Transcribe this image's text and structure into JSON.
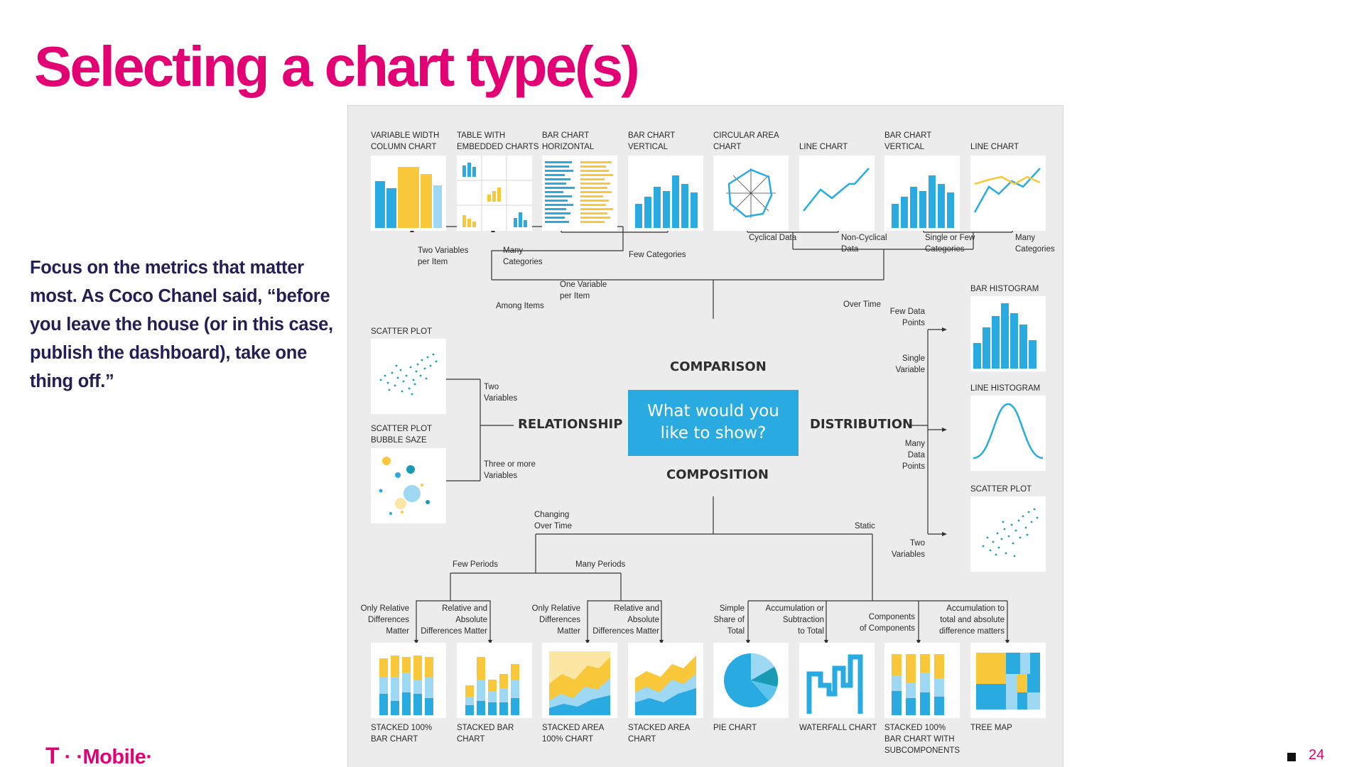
{
  "slide": {
    "title": "Selecting a chart type(s)",
    "quote": "Focus on the metrics that matter most. As Coco Chanel said, “before you leave the house (or in this case, publish the dashboard), take one thing off.”",
    "logo": {
      "mark": "T",
      "dots": "· ·",
      "wordmark": "Mobile",
      "trail": "·"
    },
    "page_number": "24"
  },
  "colors": {
    "brand": "#e20074",
    "chart_blue": "#29abe2",
    "chart_yellow": "#f9c73a",
    "chart_light_blue": "#9ed8f2",
    "chart_pale_yellow": "#fbe6a4"
  },
  "diagram": {
    "center": {
      "line1": "What would you",
      "line2": "like to show?"
    },
    "categories": {
      "comparison": "COMPARISON",
      "relationship": "RELATIONSHIP",
      "distribution": "DISTRIBUTION",
      "composition": "COMPOSITION"
    },
    "top_charts": [
      {
        "label": "VARIABLE WIDTH\nCOLUMN CHART",
        "icon": "variable-width-column-chart-icon"
      },
      {
        "label": "TABLE WITH\nEMBEDDED CHARTS",
        "icon": "table-embedded-charts-icon"
      },
      {
        "label": "BAR CHART\nHORIZONTAL",
        "icon": "horizontal-bar-chart-icon"
      },
      {
        "label": "BAR CHART\nVERTICAL",
        "icon": "vertical-bar-chart-icon"
      },
      {
        "label": "CIRCULAR AREA\nCHART",
        "icon": "circular-area-chart-icon"
      },
      {
        "label": "LINE CHART",
        "icon": "line-chart-icon"
      },
      {
        "label": "BAR CHART\nVERTICAL",
        "icon": "vertical-bar-chart-icon"
      },
      {
        "label": "LINE CHART",
        "icon": "multi-line-chart-icon"
      }
    ],
    "top_notes": {
      "two_variables": "Two Variables\nper Item",
      "many_categories_1": "Many\nCategories",
      "few_categories": "Few Categories",
      "one_variable": "One Variable\nper Item",
      "among_items": "Among Items",
      "cyclical": "Cyclical Data",
      "non_cyclical": "Non-Cyclical\nData",
      "single_or_few": "Single or Few\nCategories",
      "many_categories_2": "Many\nCategories",
      "over_time": "Over Time"
    },
    "relationship": {
      "scatter_label": "SCATTER PLOT",
      "bubble_label": "SCATTER PLOT\nBUBBLE SAZE",
      "two_variables": "Two\nVariables",
      "three_or_more": "Three or more\nVariables"
    },
    "distribution": {
      "bar_histogram": "BAR HISTOGRAM",
      "line_histogram": "LINE HISTOGRAM",
      "scatter_plot": "SCATTER PLOT",
      "few_points": "Few Data\nPoints",
      "single_variable": "Single\nVariable",
      "many_points": "Many\nData\nPoints",
      "two_variables": "Two\nVariables"
    },
    "composition": {
      "changing": "Changing\nOver Time",
      "static": "Static",
      "few_periods": "Few Periods",
      "many_periods": "Many Periods",
      "notes": [
        "Only Relative\nDifferences\nMatter",
        "Relative and\nAbsolute\nDifferences Matter",
        "Only Relative\nDifferences\nMatter",
        "Relative and\nAbsolute\nDifferences Matter",
        "Simple\nShare of\nTotal",
        "Accumulation or\nSubtraction\nto Total",
        "Components\nof Components",
        "Accumulation to\ntotal and absolute\ndifference matters"
      ],
      "bottom_charts": [
        {
          "label": "STACKED 100%\nBAR CHART",
          "icon": "stacked-100-bar-chart-icon"
        },
        {
          "label": "STACKED BAR\nCHART",
          "icon": "stacked-bar-chart-icon"
        },
        {
          "label": "STACKED AREA\n100% CHART",
          "icon": "stacked-area-100-chart-icon"
        },
        {
          "label": "STACKED AREA\nCHART",
          "icon": "stacked-area-chart-icon"
        },
        {
          "label": "PIE CHART",
          "icon": "pie-chart-icon"
        },
        {
          "label": "WATERFALL CHART",
          "icon": "waterfall-chart-icon"
        },
        {
          "label": "STACKED 100%\nBAR CHART WITH\nSUBCOMPONENTS",
          "icon": "stacked-100-subcomponents-chart-icon"
        },
        {
          "label": "TREE MAP",
          "icon": "tree-map-icon"
        }
      ]
    }
  }
}
